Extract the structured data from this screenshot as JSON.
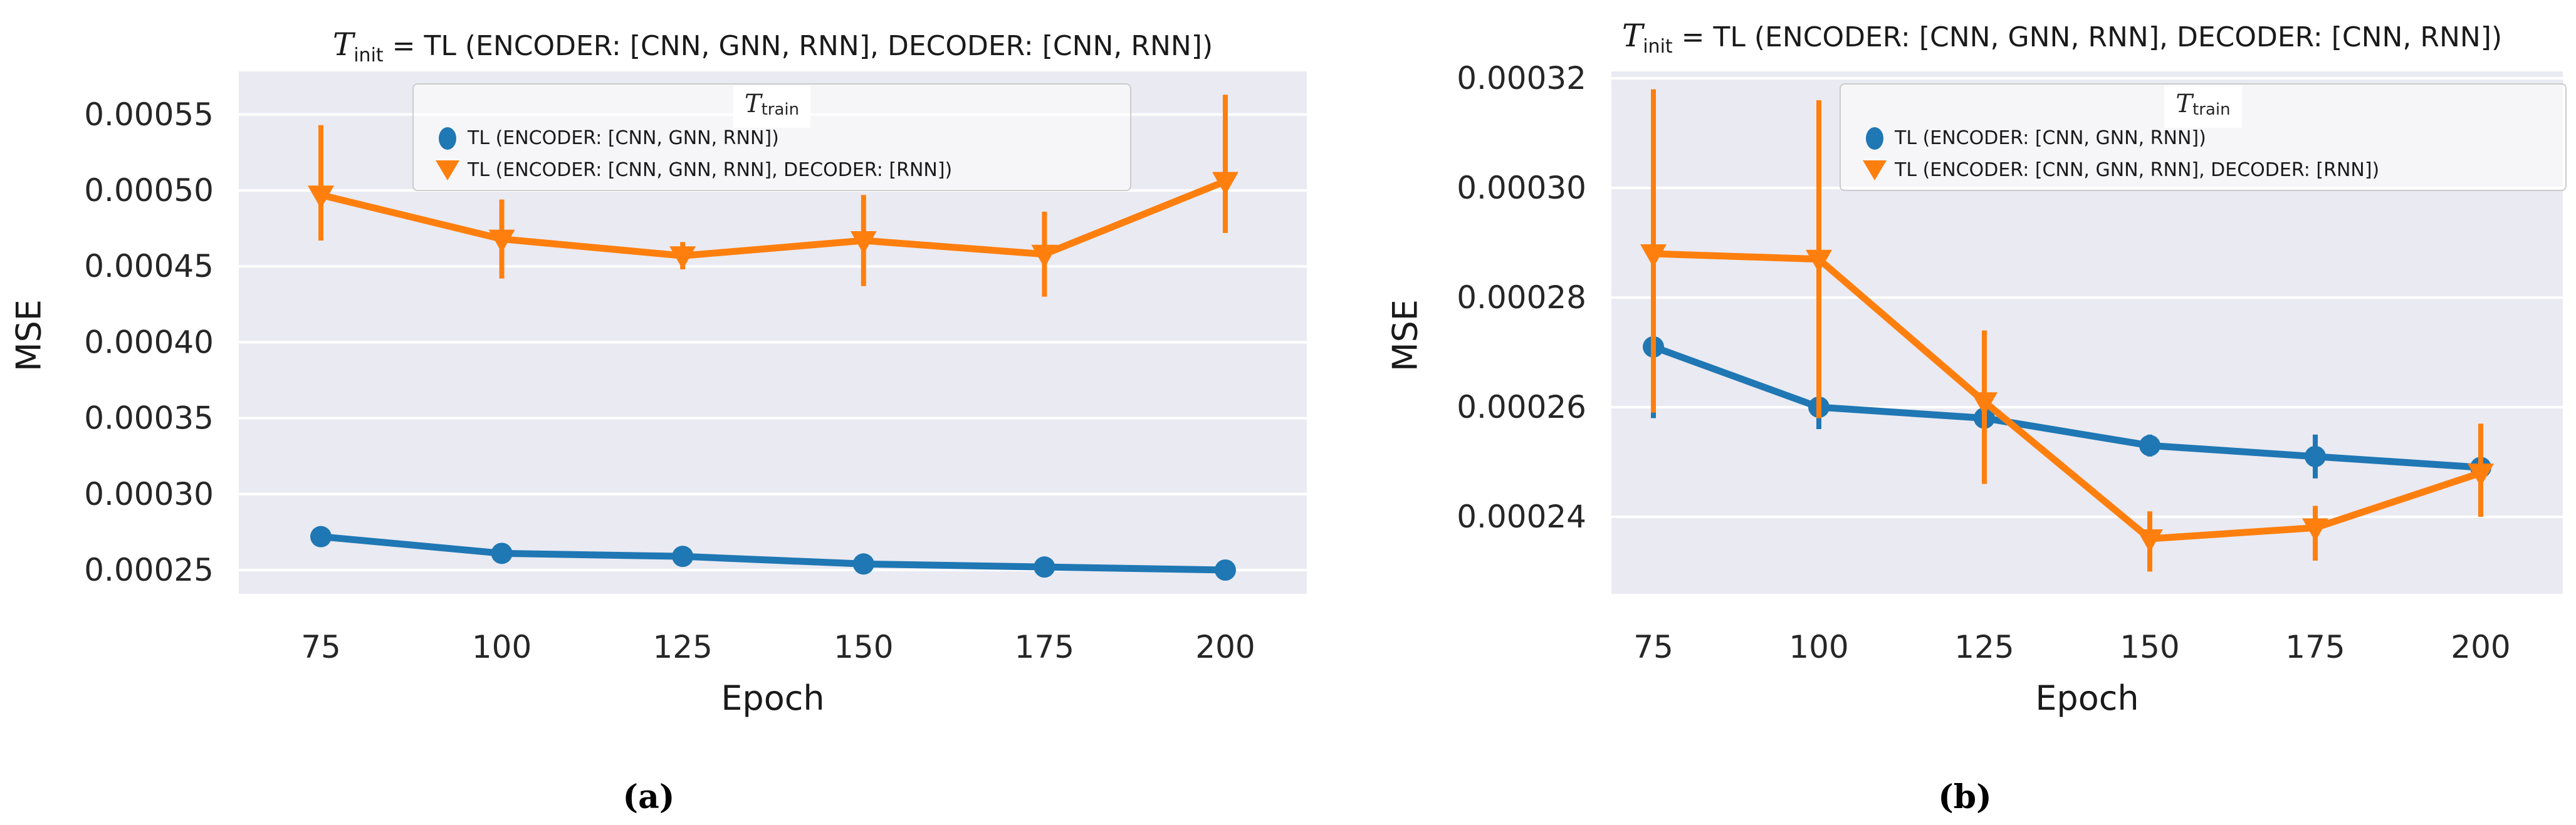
{
  "colors": {
    "figure_background": "#ffffff",
    "plot_background": "#eaeaf2",
    "gridline": "#ffffff",
    "text": "#262626",
    "series_blue": "#1f77b4",
    "series_orange": "#ff7f0e",
    "legend_border": "#cccccc"
  },
  "chart_data": [
    {
      "type": "line",
      "panel": "a",
      "caption": "(a)",
      "title_tau": "T",
      "title_tau_sub": "init",
      "title_rest": " = TL (ENCODER: [CNN, GNN, RNN], DECODER: [CNN, RNN])",
      "xlabel": "Epoch",
      "ylabel": "MSE",
      "legend_title_tau": "T",
      "legend_title_sub": "train",
      "legend_position": "upper center",
      "grid": "horizontal white gridlines on",
      "x": [
        75,
        100,
        125,
        150,
        175,
        200
      ],
      "xticks": [
        75,
        100,
        125,
        150,
        175,
        200
      ],
      "yticks": [
        0.00025,
        0.0003,
        0.00035,
        0.0004,
        0.00045,
        0.0005,
        0.00055
      ],
      "ylim": [
        0.000234,
        0.000578
      ],
      "xlim": [
        64,
        211
      ],
      "series": [
        {
          "label": "TL (ENCODER: [CNN, GNN, RNN])",
          "marker": "circle",
          "color": "#1f77b4",
          "y": [
            0.000272,
            0.000261,
            0.000259,
            0.000254,
            0.000252,
            0.00025
          ],
          "err_lo": [
            0.000269,
            0.000258,
            0.000256,
            0.000251,
            0.000249,
            0.000247
          ],
          "err_hi": [
            0.000275,
            0.000264,
            0.000262,
            0.000257,
            0.000255,
            0.000253
          ]
        },
        {
          "label": "TL (ENCODER: [CNN, GNN, RNN], DECODER: [RNN])",
          "marker": "triangle-down",
          "color": "#ff7f0e",
          "y": [
            0.000497,
            0.000468,
            0.000457,
            0.000467,
            0.000458,
            0.000506
          ],
          "err_lo": [
            0.000467,
            0.000442,
            0.000448,
            0.000437,
            0.00043,
            0.000472
          ],
          "err_hi": [
            0.000543,
            0.000494,
            0.000466,
            0.000497,
            0.000486,
            0.000563
          ]
        }
      ]
    },
    {
      "type": "line",
      "panel": "b",
      "caption": "(b)",
      "title_tau": "T",
      "title_tau_sub": "init",
      "title_rest": " = TL (ENCODER: [CNN, GNN, RNN], DECODER: [CNN, RNN])",
      "xlabel": "Epoch",
      "ylabel": "MSE",
      "legend_title_tau": "T",
      "legend_title_sub": "train",
      "legend_position": "upper right",
      "grid": "horizontal white gridlines on",
      "x": [
        75,
        100,
        125,
        150,
        175,
        200
      ],
      "xticks": [
        75,
        100,
        125,
        150,
        175,
        200
      ],
      "yticks": [
        0.00024,
        0.00026,
        0.00028,
        0.0003,
        0.00032
      ],
      "ylim": [
        0.000211,
        0.000322
      ],
      "xlim": [
        69,
        212
      ],
      "series": [
        {
          "label": "TL (ENCODER: [CNN, GNN, RNN])",
          "marker": "circle",
          "color": "#1f77b4",
          "y": [
            0.000271,
            0.00026,
            0.000258,
            0.000253,
            0.000251,
            0.000249
          ],
          "err_lo": [
            0.000258,
            0.000256,
            0.000249,
            0.000251,
            0.000247,
            0.000246
          ],
          "err_hi": [
            0.000284,
            0.000264,
            0.000267,
            0.000255,
            0.000255,
            0.000252
          ]
        },
        {
          "label": "TL (ENCODER: [CNN, GNN, RNN], DECODER: [RNN])",
          "marker": "triangle-down",
          "color": "#ff7f0e",
          "y": [
            0.000288,
            0.000287,
            0.000261,
            0.000236,
            0.000238,
            0.000248
          ],
          "err_lo": [
            0.000259,
            0.000258,
            0.000246,
            0.00023,
            0.000232,
            0.00024
          ],
          "err_hi": [
            0.000318,
            0.000316,
            0.000274,
            0.000241,
            0.000242,
            0.000257
          ]
        }
      ]
    }
  ]
}
